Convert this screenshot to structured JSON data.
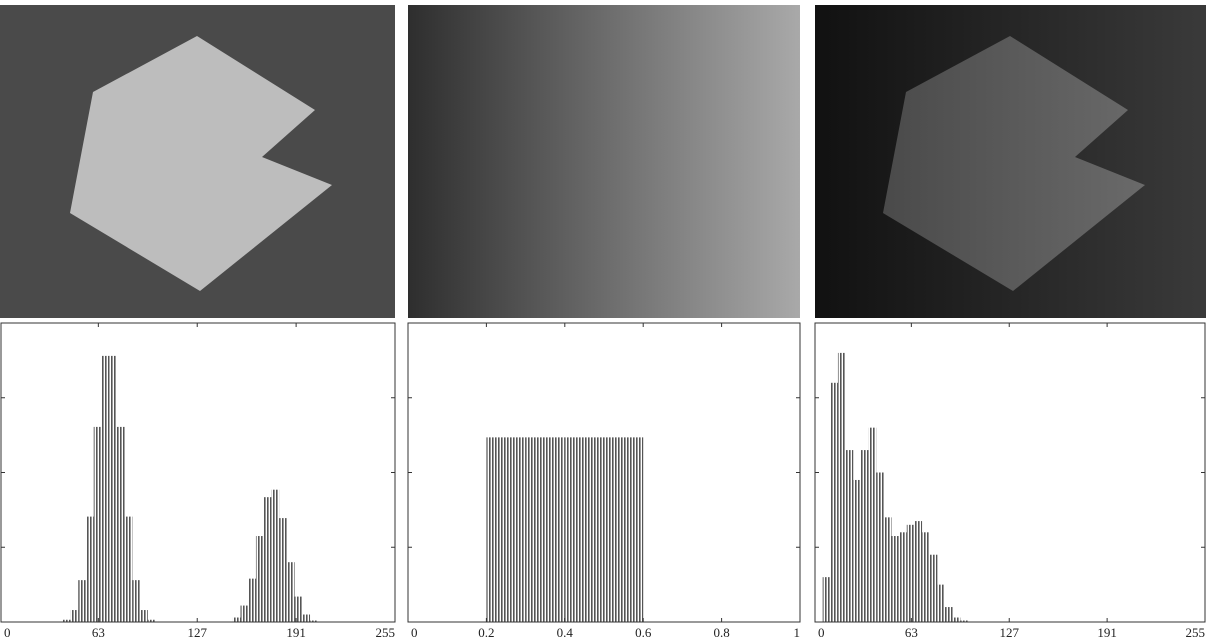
{
  "chart_data": [
    {
      "type": "histogram",
      "color": "#555555",
      "bins": [
        0,
        5,
        10,
        15,
        20,
        25,
        30,
        35,
        40,
        45,
        50,
        55,
        60,
        65,
        70,
        75,
        80,
        85,
        90,
        95,
        100,
        105,
        110,
        115,
        120,
        125,
        130,
        135,
        140,
        145,
        150,
        155,
        160,
        165,
        170,
        175,
        180,
        185,
        190,
        195,
        200,
        205,
        210,
        215,
        220,
        225,
        230,
        235,
        240,
        245,
        250,
        255
      ],
      "values": [
        0,
        0,
        0,
        0,
        0,
        0,
        0,
        0,
        0.03,
        0.16,
        0.56,
        1.41,
        2.61,
        3.56,
        3.56,
        2.61,
        1.41,
        0.56,
        0.16,
        0.03,
        0,
        0,
        0,
        0,
        0,
        0,
        0,
        0,
        0,
        0,
        0.06,
        0.22,
        0.58,
        1.15,
        1.67,
        1.77,
        1.39,
        0.8,
        0.34,
        0.1,
        0.02,
        0,
        0,
        0,
        0,
        0,
        0,
        0,
        0,
        0,
        0
      ],
      "xlim": [
        0,
        255
      ],
      "xticks": [
        0,
        63,
        127,
        191,
        255
      ],
      "ylim": [
        0,
        4
      ],
      "yticks": [
        1,
        2,
        3
      ]
    },
    {
      "type": "histogram",
      "color": "#555555",
      "bins": [
        0,
        0.05,
        0.1,
        0.15,
        0.2,
        0.25,
        0.3,
        0.35,
        0.4,
        0.45,
        0.5,
        0.55,
        0.6,
        0.65,
        0.7,
        0.75,
        0.8,
        0.85,
        0.9,
        0.95,
        1
      ],
      "values": [
        0,
        0,
        0,
        0,
        2.47,
        2.47,
        2.47,
        2.47,
        2.47,
        2.47,
        2.47,
        2.47,
        0,
        0,
        0,
        0,
        0,
        0,
        0,
        0
      ],
      "xlim": [
        0,
        1
      ],
      "xticks": [
        0,
        0.2,
        0.4,
        0.6,
        0.8,
        1
      ],
      "ylim": [
        0,
        4
      ],
      "yticks": [
        1,
        2,
        3
      ]
    },
    {
      "type": "histogram",
      "color": "#555555",
      "bins": [
        0,
        5,
        10,
        15,
        20,
        25,
        30,
        35,
        40,
        45,
        50,
        55,
        60,
        65,
        70,
        75,
        80,
        85,
        90,
        95,
        100,
        105,
        110,
        115,
        120,
        125,
        130,
        135,
        140,
        145,
        150,
        155,
        160,
        165,
        170,
        175,
        180,
        185,
        190,
        195,
        200,
        205,
        210,
        215,
        220,
        225,
        230,
        235,
        240,
        245,
        250,
        255
      ],
      "values": [
        0,
        0.6,
        3.2,
        3.6,
        2.3,
        1.9,
        2.3,
        2.6,
        2.0,
        1.4,
        1.15,
        1.2,
        1.3,
        1.35,
        1.2,
        0.9,
        0.5,
        0.2,
        0.06,
        0.02,
        0,
        0,
        0,
        0,
        0,
        0,
        0,
        0,
        0,
        0,
        0,
        0,
        0,
        0,
        0,
        0,
        0,
        0,
        0,
        0,
        0,
        0,
        0,
        0,
        0,
        0,
        0,
        0,
        0,
        0,
        0
      ],
      "xlim": [
        0,
        255
      ],
      "xticks": [
        0,
        63,
        127,
        191,
        255
      ],
      "ylim": [
        0,
        4
      ],
      "yticks": [
        1,
        2,
        3
      ]
    }
  ]
}
